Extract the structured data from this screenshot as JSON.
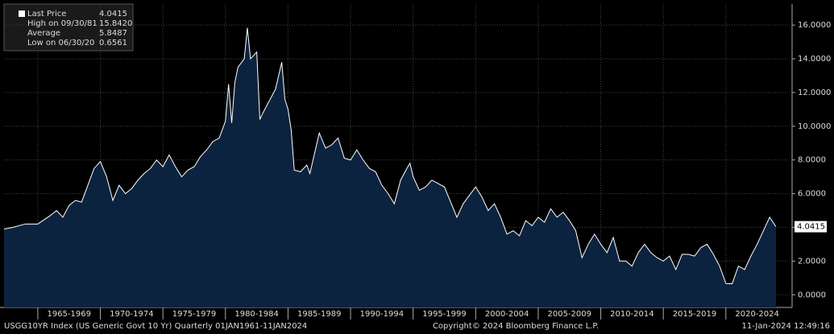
{
  "chart_data": {
    "type": "area",
    "security": "USGG10YR Index (US Generic Govt 10 Yr)  Quarterly 01JAN1961-11JAN2024",
    "copyright": "Copyright© 2024 Bloomberg Finance L.P.",
    "timestamp": "11-Jan-2024 12:49:16",
    "legend": [
      {
        "label": "Last Price",
        "value": "4.0415"
      },
      {
        "label": "High on 09/30/81",
        "value": "15.8420"
      },
      {
        "label": "Average",
        "value": "5.8487"
      },
      {
        "label": "Low on 06/30/20",
        "value": "0.6561"
      }
    ],
    "line_color": "#ffffff",
    "fill_color": "#0c2340",
    "grid": true,
    "x": [
      1962.3,
      1963,
      1964,
      1965,
      1966,
      1966.5,
      1967,
      1967.5,
      1968,
      1968.5,
      1969,
      1969.5,
      1970,
      1970.5,
      1971,
      1971.5,
      1972,
      1972.5,
      1973,
      1973.5,
      1974,
      1974.5,
      1975,
      1975.5,
      1976,
      1976.5,
      1977,
      1977.5,
      1978,
      1978.5,
      1979,
      1979.5,
      1980,
      1980.25,
      1980.5,
      1980.75,
      1981,
      1981.5,
      1981.75,
      1982,
      1982.5,
      1982.75,
      1983,
      1983.5,
      1984,
      1984.5,
      1984.75,
      1985,
      1985.25,
      1985.5,
      1986,
      1986.5,
      1986.75,
      1987,
      1987.5,
      1988,
      1988.5,
      1989,
      1989.5,
      1990,
      1990.5,
      1991,
      1991.5,
      1992,
      1992.5,
      1993,
      1993.5,
      1994,
      1994.5,
      1994.75,
      1995,
      1995.5,
      1996,
      1996.5,
      1997,
      1997.5,
      1998,
      1998.5,
      1999,
      1999.5,
      2000,
      2000.5,
      2001,
      2001.5,
      2002,
      2002.5,
      2003,
      2003.5,
      2004,
      2004.5,
      2005,
      2005.5,
      2006,
      2006.5,
      2007,
      2007.5,
      2008,
      2008.5,
      2009,
      2009.5,
      2010,
      2010.5,
      2011,
      2011.5,
      2012,
      2012.5,
      2013,
      2013.5,
      2014,
      2014.5,
      2015,
      2015.5,
      2016,
      2016.5,
      2017,
      2017.5,
      2018,
      2018.5,
      2019,
      2019.5,
      2020,
      2020.5,
      2021,
      2021.5,
      2022,
      2022.5,
      2023,
      2023.5,
      2024
    ],
    "values": [
      3.9,
      4.0,
      4.2,
      4.2,
      4.7,
      5.0,
      4.6,
      5.3,
      5.6,
      5.5,
      6.5,
      7.5,
      7.9,
      7.0,
      5.6,
      6.5,
      6.0,
      6.3,
      6.8,
      7.2,
      7.5,
      8.0,
      7.6,
      8.3,
      7.6,
      7.0,
      7.4,
      7.6,
      8.2,
      8.6,
      9.1,
      9.3,
      10.3,
      12.5,
      10.2,
      12.6,
      13.5,
      14.0,
      15.842,
      14.0,
      14.4,
      10.4,
      10.8,
      11.5,
      12.2,
      13.8,
      11.6,
      11.0,
      9.8,
      7.4,
      7.3,
      7.7,
      7.2,
      8.0,
      9.6,
      8.7,
      8.9,
      9.3,
      8.1,
      8.0,
      8.6,
      8.0,
      7.5,
      7.3,
      6.5,
      6.0,
      5.4,
      6.8,
      7.5,
      7.8,
      7.0,
      6.2,
      6.4,
      6.8,
      6.6,
      6.4,
      5.5,
      4.6,
      5.4,
      5.9,
      6.4,
      5.8,
      5.0,
      5.4,
      4.6,
      3.6,
      3.8,
      3.5,
      4.4,
      4.1,
      4.6,
      4.3,
      5.1,
      4.6,
      4.9,
      4.4,
      3.8,
      2.2,
      3.0,
      3.6,
      3.0,
      2.5,
      3.4,
      2.0,
      2.0,
      1.7,
      2.5,
      3.0,
      2.5,
      2.2,
      2.0,
      2.3,
      1.5,
      2.4,
      2.4,
      2.3,
      2.8,
      3.0,
      2.4,
      1.7,
      0.67,
      0.6561,
      1.7,
      1.5,
      2.3,
      3.0,
      3.8,
      4.6,
      4.0415
    ],
    "xlim": [
      1962.3,
      2025.1
    ],
    "xticks": [
      {
        "value": 1965,
        "label": "1965-1969"
      },
      {
        "value": 1970,
        "label": "1970-1974"
      },
      {
        "value": 1975,
        "label": "1975-1979"
      },
      {
        "value": 1980,
        "label": "1980-1984"
      },
      {
        "value": 1985,
        "label": "1985-1989"
      },
      {
        "value": 1990,
        "label": "1990-1994"
      },
      {
        "value": 1995,
        "label": "1995-1999"
      },
      {
        "value": 2000,
        "label": "2000-2004"
      },
      {
        "value": 2005,
        "label": "2005-2009"
      },
      {
        "value": 2010,
        "label": "2010-2014"
      },
      {
        "value": 2015,
        "label": "2015-2019"
      },
      {
        "value": 2020,
        "label": "2020-2024"
      }
    ],
    "ylim": [
      -0.75,
      17.25
    ],
    "yticks": [
      {
        "value": 0,
        "label": "0.0000"
      },
      {
        "value": 2,
        "label": "2.0000"
      },
      {
        "value": 4,
        "label": "4.0000"
      },
      {
        "value": 6,
        "label": "6.0000"
      },
      {
        "value": 8,
        "label": "8.0000"
      },
      {
        "value": 10,
        "label": "10.0000"
      },
      {
        "value": 12,
        "label": "12.0000"
      },
      {
        "value": 14,
        "label": "14.0000"
      },
      {
        "value": 16,
        "label": "16.0000"
      }
    ]
  }
}
